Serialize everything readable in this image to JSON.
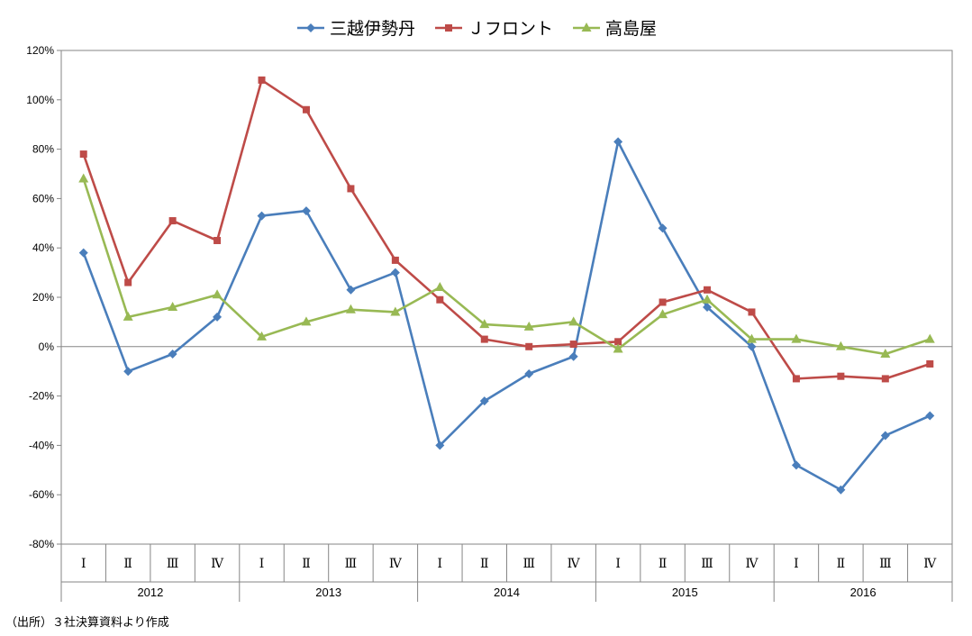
{
  "chart_data": {
    "type": "line",
    "categories": [
      "Ⅰ",
      "Ⅱ",
      "Ⅲ",
      "Ⅳ",
      "Ⅰ",
      "Ⅱ",
      "Ⅲ",
      "Ⅳ",
      "Ⅰ",
      "Ⅱ",
      "Ⅲ",
      "Ⅳ",
      "Ⅰ",
      "Ⅱ",
      "Ⅲ",
      "Ⅳ",
      "Ⅰ",
      "Ⅱ",
      "Ⅲ",
      "Ⅳ"
    ],
    "years": [
      "2012",
      "2013",
      "2014",
      "2015",
      "2016"
    ],
    "ylim": [
      -80,
      120
    ],
    "yticks": [
      -80,
      -60,
      -40,
      -20,
      0,
      20,
      40,
      60,
      80,
      100,
      120
    ],
    "ytick_labels": [
      "-80%",
      "-60%",
      "-40%",
      "-20%",
      "0%",
      "20%",
      "40%",
      "60%",
      "80%",
      "100%",
      "120%"
    ],
    "grid": false,
    "legend": "top",
    "series": [
      {
        "name": "三越伊勢丹",
        "color": "#4a7ebb",
        "marker": "diamond",
        "values": [
          38,
          -10,
          -3,
          12,
          53,
          55,
          23,
          30,
          -40,
          -22,
          -11,
          -4,
          83,
          48,
          16,
          0,
          -48,
          -58,
          -36,
          -28
        ]
      },
      {
        "name": "Ｊフロント",
        "color": "#be4b48",
        "marker": "square",
        "values": [
          78,
          26,
          51,
          43,
          108,
          96,
          64,
          35,
          19,
          3,
          0,
          1,
          2,
          18,
          23,
          14,
          -13,
          -12,
          -13,
          -7
        ]
      },
      {
        "name": "高島屋",
        "color": "#98b954",
        "marker": "triangle",
        "values": [
          68,
          12,
          16,
          21,
          4,
          10,
          15,
          14,
          24,
          9,
          8,
          10,
          -1,
          13,
          19,
          3,
          3,
          0,
          -3,
          3
        ]
      }
    ]
  },
  "source_note": "（出所）３社決算資料より作成"
}
